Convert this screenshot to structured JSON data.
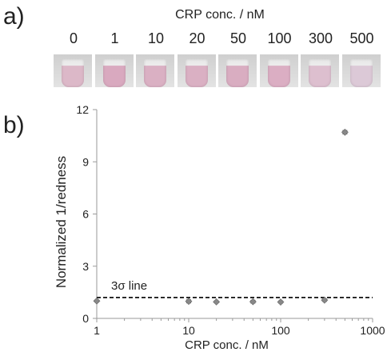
{
  "panel_a": {
    "label": "a)",
    "title": "CRP conc. / nM",
    "concentrations": [
      "0",
      "1",
      "10",
      "20",
      "50",
      "100",
      "300",
      "500"
    ],
    "tube_colors": [
      "#dcb8c8",
      "#d9a9bf",
      "#dab0c3",
      "#dab0c3",
      "#d9adc1",
      "#dbaec3",
      "#ddbfcf",
      "#dcc9d7"
    ]
  },
  "panel_b": {
    "label": "b)"
  },
  "chart_data": {
    "type": "scatter",
    "title": "",
    "xlabel": "CRP conc. / nM",
    "ylabel": "Normalized 1/redness",
    "xscale": "log",
    "xlim": [
      1,
      1000
    ],
    "ylim": [
      0,
      12
    ],
    "xticks": [
      1,
      10,
      100,
      1000
    ],
    "yticks": [
      0,
      3,
      6,
      9,
      12
    ],
    "x": [
      1,
      10,
      20,
      50,
      100,
      300,
      500
    ],
    "y": [
      1.0,
      0.98,
      0.95,
      0.96,
      0.94,
      1.05,
      10.7
    ],
    "error": [
      0.05,
      0.09,
      0.05,
      0.08,
      0.06,
      0.07,
      0.1
    ],
    "threshold": {
      "label": "3σ line",
      "value": 1.2
    },
    "grid": false,
    "marker_color": "#888888"
  }
}
